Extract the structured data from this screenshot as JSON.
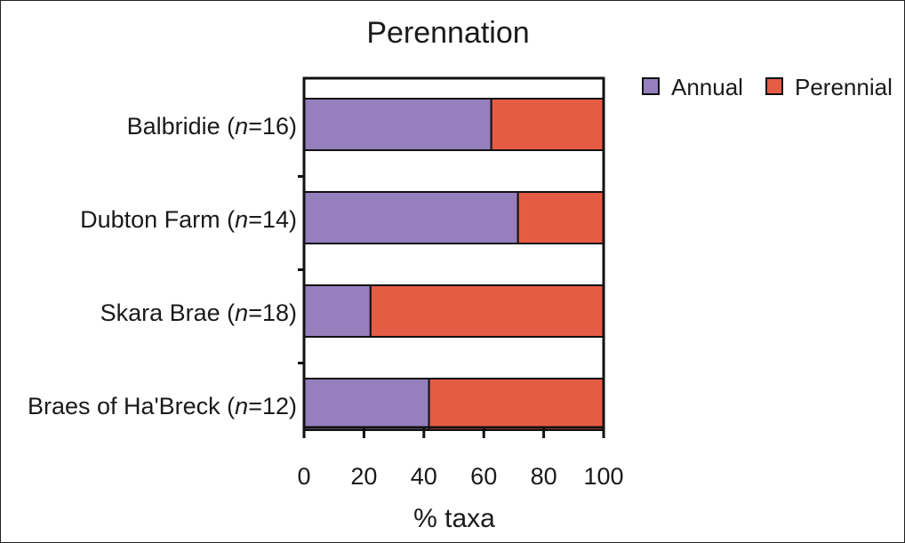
{
  "chart_data": {
    "type": "bar",
    "orientation": "horizontal",
    "stacked": true,
    "title": "Perennation",
    "xlabel": "% taxa",
    "ylabel": "",
    "xlim": [
      0,
      100
    ],
    "xticks": [
      "0",
      "20",
      "40",
      "60",
      "80",
      "100"
    ],
    "categories": [
      {
        "name": "Balbridie",
        "n_label": "n",
        "n_value": "=16)"
      },
      {
        "name": "Dubton Farm",
        "n_label": "n",
        "n_value": "=14)"
      },
      {
        "name": "Skara Brae",
        "n_label": "n",
        "n_value": "=18)"
      },
      {
        "name": "Braes of Ha'Breck",
        "n_label": "n",
        "n_value": "=12)"
      }
    ],
    "series": [
      {
        "name": "Annual",
        "color": "#9580bd",
        "values": [
          62.5,
          71.4,
          22.2,
          41.7
        ]
      },
      {
        "name": "Perennial",
        "color": "#e55c45",
        "values": [
          37.5,
          28.6,
          77.8,
          58.3
        ]
      }
    ],
    "legend": "top-right",
    "grid": false
  }
}
